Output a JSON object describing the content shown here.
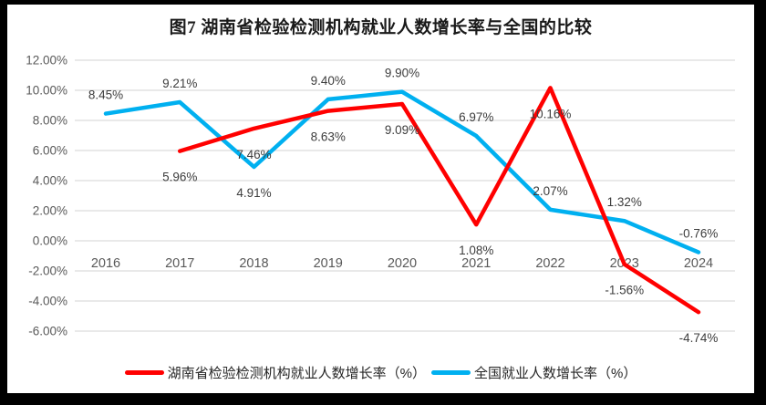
{
  "chart_data": {
    "type": "line",
    "title": "图7 湖南省检验检测机构就业人数增长率与全国的比较",
    "categories": [
      "2016",
      "2017",
      "2018",
      "2019",
      "2020",
      "2021",
      "2022",
      "2023",
      "2024"
    ],
    "series": [
      {
        "name": "全国就业人数增长率（%）",
        "color": "#00B0F0",
        "values": [
          8.45,
          9.21,
          4.91,
          9.4,
          9.9,
          6.97,
          2.07,
          1.32,
          -0.76
        ],
        "point_labels": [
          "8.45%",
          "9.21%",
          "4.91%",
          "9.40%",
          "9.90%",
          "6.97%",
          "2.07%",
          "1.32%",
          "-0.76%"
        ],
        "label_placement": [
          "above",
          "above",
          "below",
          "above",
          "above",
          "above",
          "above",
          "above",
          "above"
        ]
      },
      {
        "name": "湖南省检验检测机构就业人数增长率（%）",
        "color": "#FF0000",
        "values": [
          null,
          5.96,
          7.46,
          8.63,
          9.09,
          1.08,
          10.16,
          -1.56,
          -4.74
        ],
        "point_labels": [
          "",
          "5.96%",
          "7.46%",
          "8.63%",
          "9.09%",
          "1.08%",
          "10.16%",
          "-1.56%",
          "-4.74%"
        ],
        "label_placement": [
          "below",
          "below",
          "below",
          "below",
          "below",
          "below",
          "below",
          "below",
          "below"
        ]
      }
    ],
    "legend_order": [
      1,
      0
    ],
    "y_axis": {
      "min": -6,
      "max": 12,
      "step": 2,
      "tick_labels": [
        "12.00%",
        "10.00%",
        "8.00%",
        "6.00%",
        "4.00%",
        "2.00%",
        "0.00%",
        "-2.00%",
        "-4.00%",
        "-6.00%"
      ]
    },
    "grid": true,
    "legend_position": "bottom"
  },
  "colors": {
    "grid": "#DCDCDC",
    "axis_text": "#595959",
    "data_label": "#3D3D3D"
  }
}
